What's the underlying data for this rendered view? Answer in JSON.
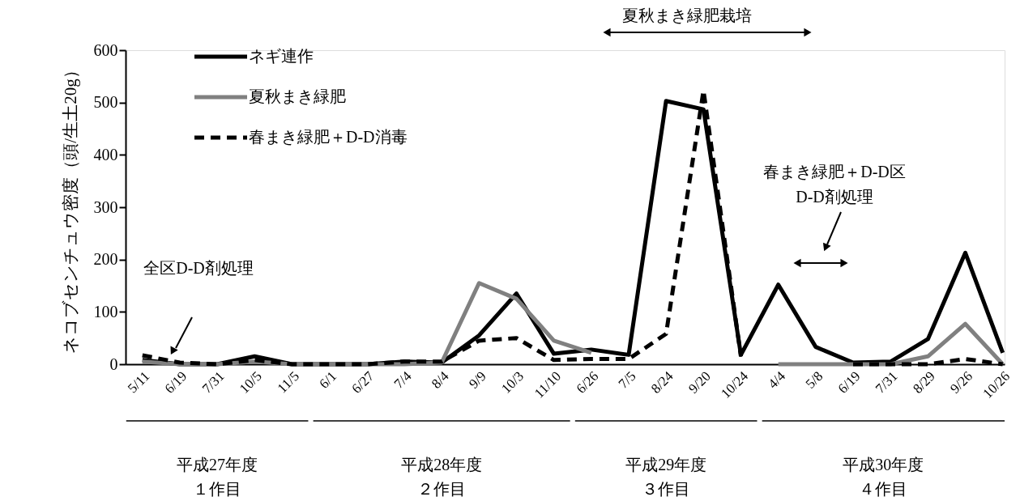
{
  "chart_data": {
    "type": "line",
    "ylabel": "ネコブセンチュウ密度（頭/生土20g）",
    "categories": [
      "5/11",
      "6/19",
      "7/31",
      "10/5",
      "11/5",
      "6/1",
      "6/27",
      "7/4",
      "8/4",
      "9/9",
      "10/3",
      "11/10",
      "6/26",
      "7/5",
      "8/24",
      "9/20",
      "10/24",
      "4/4",
      "5/8",
      "6/19",
      "7/31",
      "8/29",
      "9/26",
      "10/26"
    ],
    "series": [
      {
        "name": "ネギ連作",
        "color": "#000000",
        "line_style": "solid",
        "values": [
          8,
          0,
          0,
          15,
          0,
          0,
          0,
          5,
          3,
          55,
          135,
          20,
          28,
          18,
          503,
          487,
          18,
          152,
          33,
          3,
          5,
          48,
          213,
          22
        ]
      },
      {
        "name": "夏秋まき緑肥",
        "color": "#808080",
        "line_style": "solid",
        "values": [
          5,
          0,
          0,
          5,
          0,
          0,
          0,
          0,
          3,
          155,
          125,
          45,
          22,
          null,
          null,
          null,
          null,
          0,
          0,
          0,
          0,
          15,
          77,
          0
        ]
      },
      {
        "name": "春まき緑肥＋D-D消毒",
        "color": "#000000",
        "line_style": "dashed",
        "values": [
          17,
          3,
          0,
          8,
          0,
          0,
          0,
          5,
          5,
          45,
          50,
          8,
          10,
          10,
          58,
          523,
          15,
          null,
          null,
          0,
          0,
          0,
          10,
          0
        ]
      }
    ],
    "ylim": [
      0,
      600
    ],
    "yticks": [
      0,
      100,
      200,
      300,
      400,
      500,
      600
    ],
    "grid": false,
    "legend": "top left",
    "marker": "none",
    "annotations": [
      "全区D-D剤処理",
      "夏秋まき緑肥栽培",
      "春まき緑肥＋D-D区",
      "D-D剤処理",
      "平成27年度",
      "１作目",
      "平成28年度",
      "２作目",
      "平成29年度",
      "３作目",
      "平成30年度",
      "４作目"
    ]
  }
}
